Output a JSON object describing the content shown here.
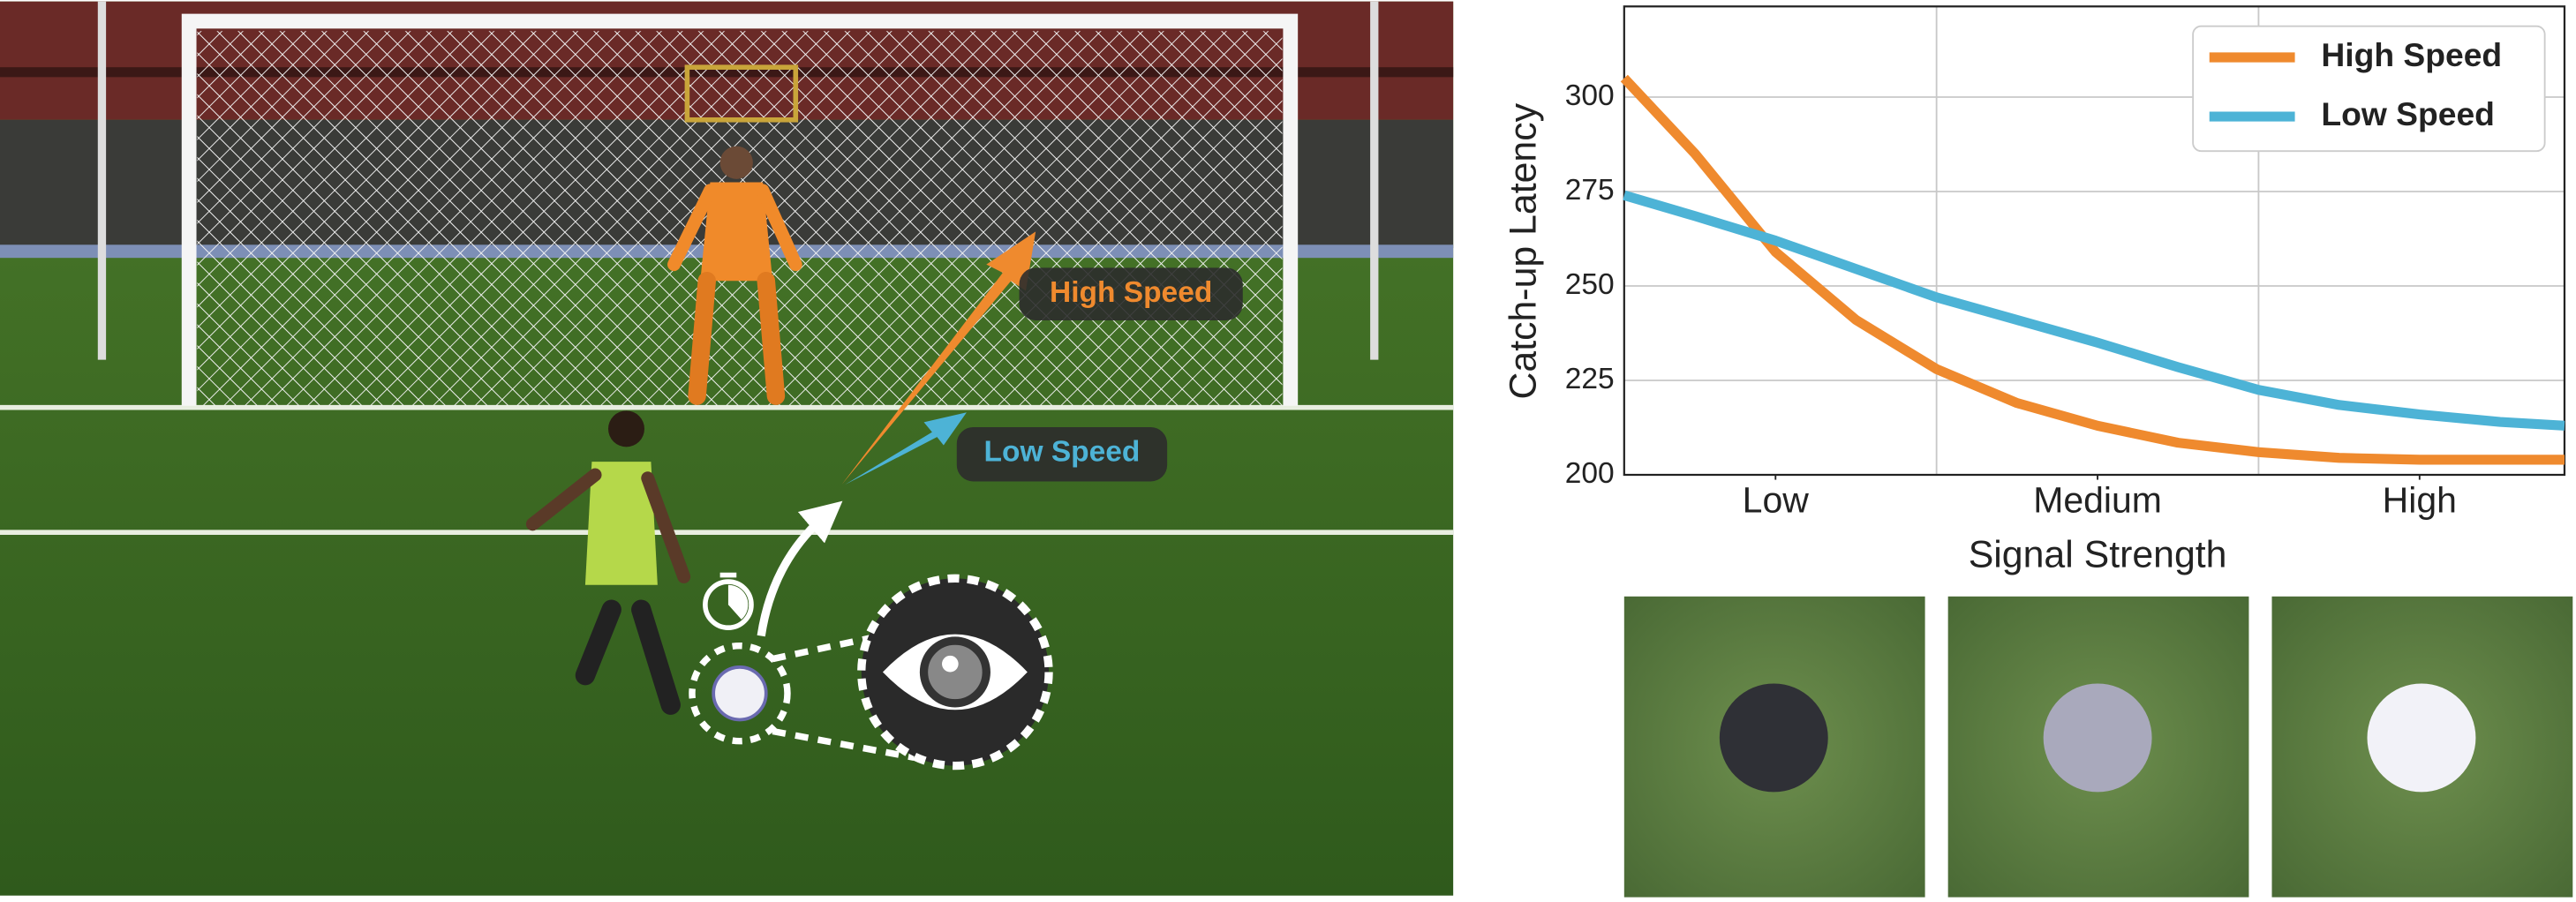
{
  "chart_data": {
    "type": "line",
    "xlabel": "Signal Strength",
    "ylabel": "Catch-up Latency",
    "x": [
      0.53,
      0.75,
      1,
      1.25,
      1.5,
      1.75,
      2,
      2.25,
      2.5,
      2.75,
      3,
      3.25,
      3.45
    ],
    "xlim": [
      0.53,
      3.45
    ],
    "xticks": [
      {
        "value": 1,
        "label": "Low"
      },
      {
        "value": 2,
        "label": "Medium"
      },
      {
        "value": 3,
        "label": "High"
      }
    ],
    "ylim": [
      200,
      324
    ],
    "yticks": [
      200,
      225,
      250,
      275,
      300
    ],
    "grid": true,
    "legend": "upper right",
    "series": [
      {
        "name": "High Speed",
        "color": "#ef8a2e",
        "values": [
          305,
          285,
          259,
          241,
          228,
          219,
          213,
          208.5,
          206,
          204.5,
          204,
          204,
          204
        ]
      },
      {
        "name": "Low Speed",
        "color": "#4db3d6",
        "values": [
          274,
          268.5,
          262,
          254.5,
          247,
          241,
          235,
          228.5,
          222.5,
          218.5,
          216,
          214,
          213
        ]
      }
    ]
  }
}
